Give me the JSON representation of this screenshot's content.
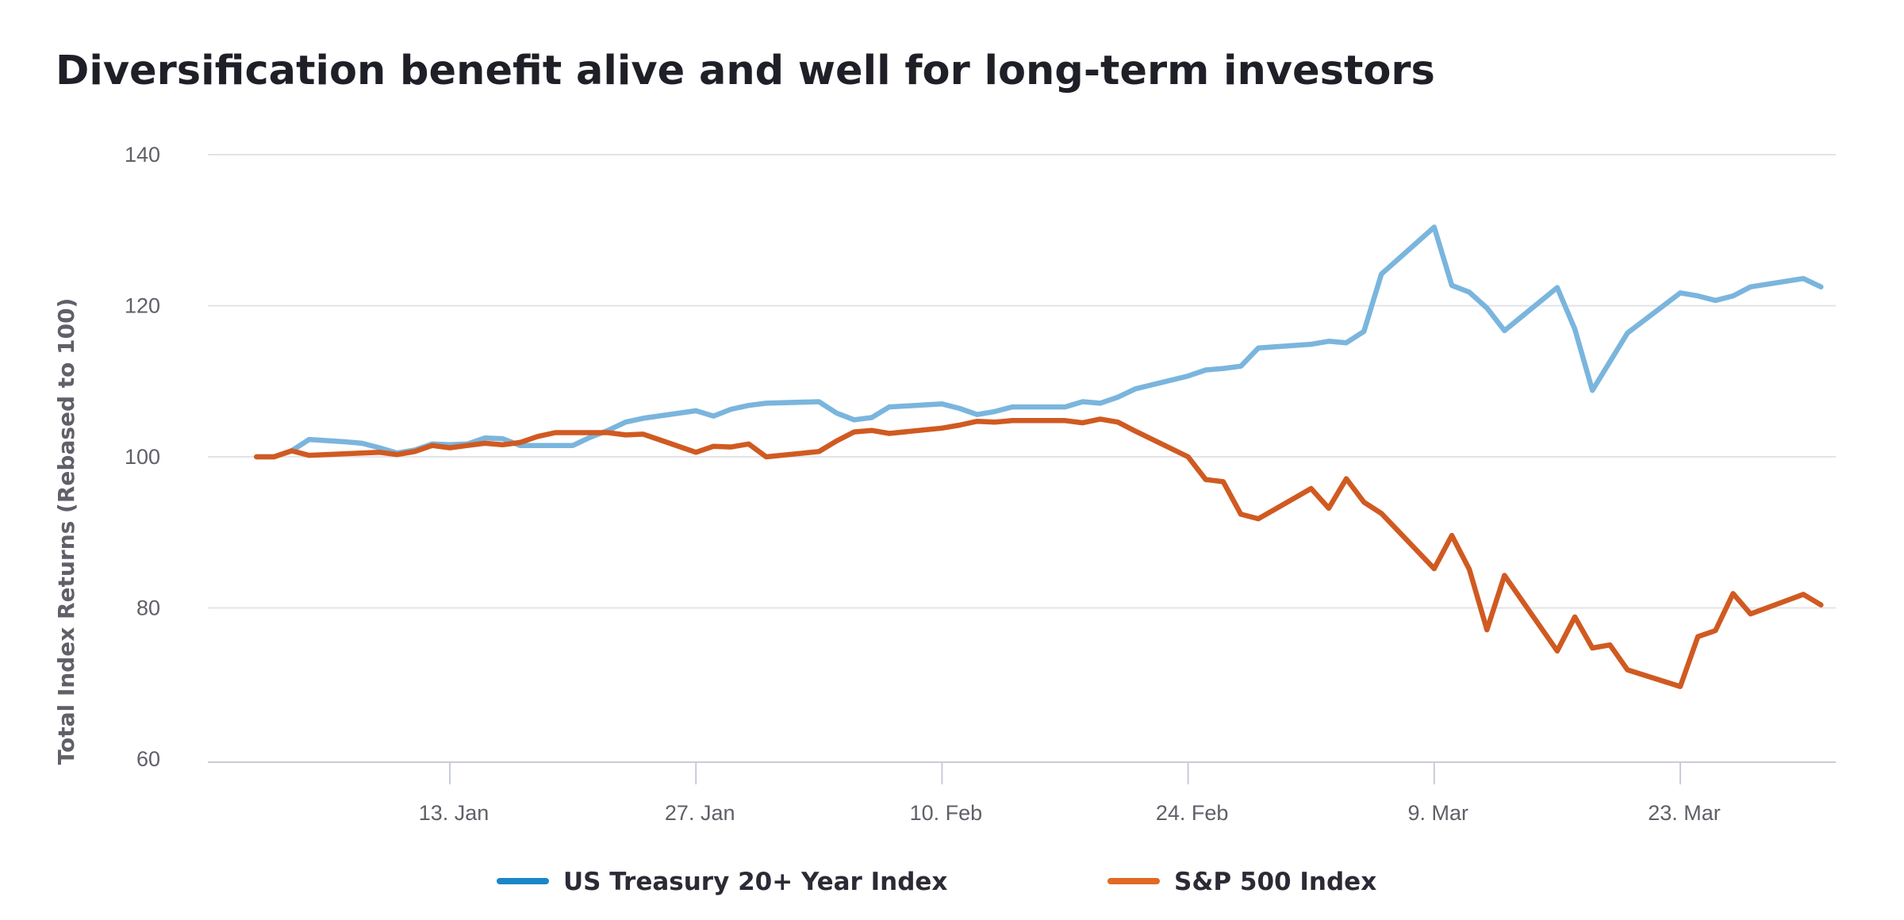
{
  "chart_data": {
    "type": "line",
    "title": "Diversification benefit alive and well for long-term investors",
    "ylabel": "Total Index Returns (Rebased to 100)",
    "xlabel": "",
    "ylim": [
      60,
      140
    ],
    "yticks": [
      "60",
      "80",
      "100",
      "120",
      "140"
    ],
    "xlim": [
      "2020-01-01",
      "2020-04-01"
    ],
    "xticks": [
      {
        "date": "2020-01-13",
        "label": "13. Jan"
      },
      {
        "date": "2020-01-27",
        "label": "27. Jan"
      },
      {
        "date": "2020-02-10",
        "label": "10. Feb"
      },
      {
        "date": "2020-02-24",
        "label": "24. Feb"
      },
      {
        "date": "2020-03-09",
        "label": "9. Mar"
      },
      {
        "date": "2020-03-23",
        "label": "23. Mar"
      }
    ],
    "grid": true,
    "legend_position": "bottom-center",
    "series": [
      {
        "name": "US Treasury 20+ Year Index",
        "color": "#7ab5dd",
        "legend_color": "#1a87c6",
        "points": [
          [
            "2020-01-02",
            100.0
          ],
          [
            "2020-01-03",
            100.0
          ],
          [
            "2020-01-04",
            100.8
          ],
          [
            "2020-01-05",
            102.3
          ],
          [
            "2020-01-07",
            102.0
          ],
          [
            "2020-01-08",
            101.8
          ],
          [
            "2020-01-09",
            101.2
          ],
          [
            "2020-01-10",
            100.5
          ],
          [
            "2020-01-11",
            100.9
          ],
          [
            "2020-01-12",
            101.7
          ],
          [
            "2020-01-13",
            101.6
          ],
          [
            "2020-01-14",
            101.7
          ],
          [
            "2020-01-15",
            102.5
          ],
          [
            "2020-01-16",
            102.4
          ],
          [
            "2020-01-17",
            101.5
          ],
          [
            "2020-01-20",
            101.5
          ],
          [
            "2020-01-21",
            102.6
          ],
          [
            "2020-01-22",
            103.5
          ],
          [
            "2020-01-23",
            104.6
          ],
          [
            "2020-01-24",
            105.1
          ],
          [
            "2020-01-27",
            106.1
          ],
          [
            "2020-01-28",
            105.4
          ],
          [
            "2020-01-29",
            106.3
          ],
          [
            "2020-01-30",
            106.8
          ],
          [
            "2020-01-31",
            107.1
          ],
          [
            "2020-02-03",
            107.3
          ],
          [
            "2020-02-04",
            105.8
          ],
          [
            "2020-02-05",
            104.9
          ],
          [
            "2020-02-06",
            105.2
          ],
          [
            "2020-02-07",
            106.6
          ],
          [
            "2020-02-10",
            107.0
          ],
          [
            "2020-02-11",
            106.4
          ],
          [
            "2020-02-12",
            105.6
          ],
          [
            "2020-02-13",
            106.0
          ],
          [
            "2020-02-14",
            106.6
          ],
          [
            "2020-02-17",
            106.6
          ],
          [
            "2020-02-18",
            107.3
          ],
          [
            "2020-02-19",
            107.1
          ],
          [
            "2020-02-20",
            107.9
          ],
          [
            "2020-02-21",
            109.0
          ],
          [
            "2020-02-24",
            110.7
          ],
          [
            "2020-02-25",
            111.5
          ],
          [
            "2020-02-26",
            111.7
          ],
          [
            "2020-02-27",
            112.0
          ],
          [
            "2020-02-28",
            114.4
          ],
          [
            "2020-03-02",
            114.9
          ],
          [
            "2020-03-03",
            115.3
          ],
          [
            "2020-03-04",
            115.1
          ],
          [
            "2020-03-05",
            116.6
          ],
          [
            "2020-03-06",
            124.2
          ],
          [
            "2020-03-09",
            130.4
          ],
          [
            "2020-03-10",
            122.7
          ],
          [
            "2020-03-11",
            121.8
          ],
          [
            "2020-03-12",
            119.7
          ],
          [
            "2020-03-13",
            116.7
          ],
          [
            "2020-03-16",
            122.4
          ],
          [
            "2020-03-17",
            116.9
          ],
          [
            "2020-03-18",
            108.8
          ],
          [
            "2020-03-20",
            116.4
          ],
          [
            "2020-03-23",
            121.7
          ],
          [
            "2020-03-24",
            121.3
          ],
          [
            "2020-03-25",
            120.7
          ],
          [
            "2020-03-26",
            121.3
          ],
          [
            "2020-03-27",
            122.5
          ],
          [
            "2020-03-30",
            123.6
          ],
          [
            "2020-03-31",
            122.5
          ]
        ]
      },
      {
        "name": "S&P 500 Index",
        "color": "#d05a21",
        "legend_color": "#e06a26",
        "points": [
          [
            "2020-01-02",
            100.0
          ],
          [
            "2020-01-03",
            100.0
          ],
          [
            "2020-01-04",
            100.8
          ],
          [
            "2020-01-05",
            100.2
          ],
          [
            "2020-01-09",
            100.6
          ],
          [
            "2020-01-10",
            100.3
          ],
          [
            "2020-01-11",
            100.7
          ],
          [
            "2020-01-12",
            101.5
          ],
          [
            "2020-01-13",
            101.2
          ],
          [
            "2020-01-14",
            101.5
          ],
          [
            "2020-01-15",
            101.8
          ],
          [
            "2020-01-16",
            101.6
          ],
          [
            "2020-01-17",
            101.9
          ],
          [
            "2020-01-18",
            102.7
          ],
          [
            "2020-01-19",
            103.2
          ],
          [
            "2020-01-22",
            103.2
          ],
          [
            "2020-01-23",
            102.9
          ],
          [
            "2020-01-24",
            103.0
          ],
          [
            "2020-01-25",
            102.2
          ],
          [
            "2020-01-27",
            100.6
          ],
          [
            "2020-01-28",
            101.4
          ],
          [
            "2020-01-29",
            101.3
          ],
          [
            "2020-01-30",
            101.7
          ],
          [
            "2020-01-31",
            100.0
          ],
          [
            "2020-02-03",
            100.7
          ],
          [
            "2020-02-04",
            102.1
          ],
          [
            "2020-02-05",
            103.3
          ],
          [
            "2020-02-06",
            103.5
          ],
          [
            "2020-02-07",
            103.1
          ],
          [
            "2020-02-10",
            103.8
          ],
          [
            "2020-02-11",
            104.2
          ],
          [
            "2020-02-12",
            104.7
          ],
          [
            "2020-02-13",
            104.6
          ],
          [
            "2020-02-14",
            104.8
          ],
          [
            "2020-02-17",
            104.8
          ],
          [
            "2020-02-18",
            104.5
          ],
          [
            "2020-02-19",
            105.0
          ],
          [
            "2020-02-20",
            104.6
          ],
          [
            "2020-02-21",
            103.4
          ],
          [
            "2020-02-24",
            100.0
          ],
          [
            "2020-02-25",
            97.0
          ],
          [
            "2020-02-26",
            96.7
          ],
          [
            "2020-02-27",
            92.4
          ],
          [
            "2020-02-28",
            91.8
          ],
          [
            "2020-03-02",
            95.8
          ],
          [
            "2020-03-03",
            93.2
          ],
          [
            "2020-03-04",
            97.1
          ],
          [
            "2020-03-05",
            94.0
          ],
          [
            "2020-03-06",
            92.5
          ],
          [
            "2020-03-09",
            85.2
          ],
          [
            "2020-03-10",
            89.6
          ],
          [
            "2020-03-11",
            85.1
          ],
          [
            "2020-03-12",
            77.1
          ],
          [
            "2020-03-13",
            84.3
          ],
          [
            "2020-03-16",
            74.3
          ],
          [
            "2020-03-17",
            78.8
          ],
          [
            "2020-03-18",
            74.7
          ],
          [
            "2020-03-19",
            75.1
          ],
          [
            "2020-03-20",
            71.8
          ],
          [
            "2020-03-23",
            69.6
          ],
          [
            "2020-03-24",
            76.2
          ],
          [
            "2020-03-25",
            77.0
          ],
          [
            "2020-03-26",
            81.9
          ],
          [
            "2020-03-27",
            79.2
          ],
          [
            "2020-03-30",
            81.8
          ],
          [
            "2020-03-31",
            80.4
          ]
        ]
      }
    ]
  }
}
